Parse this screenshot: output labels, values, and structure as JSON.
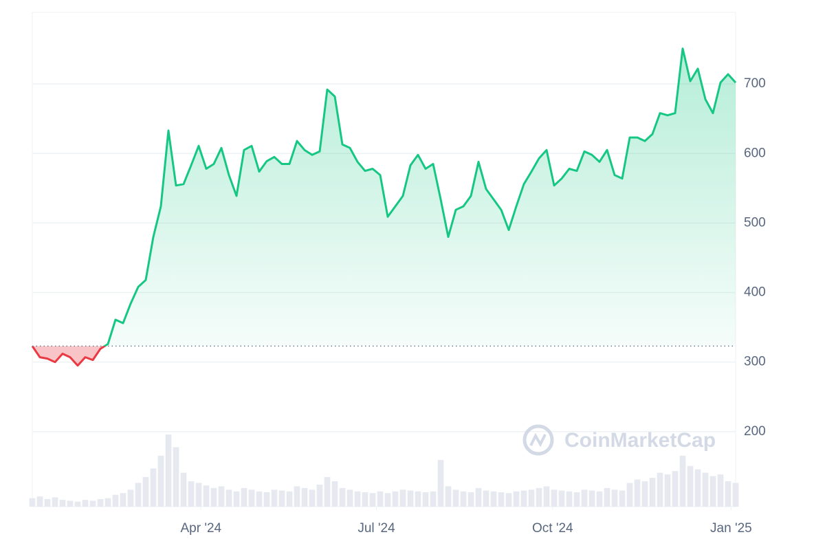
{
  "chart_data": {
    "type": "line",
    "values": [
      323,
      307,
      305,
      300,
      312,
      307,
      295,
      307,
      303,
      319,
      326,
      361,
      356,
      384,
      408,
      418,
      480,
      524,
      633,
      554,
      556,
      583,
      611,
      578,
      585,
      608,
      569,
      539,
      605,
      611,
      574,
      589,
      595,
      585,
      585,
      618,
      605,
      598,
      603,
      692,
      682,
      613,
      608,
      588,
      575,
      578,
      569,
      509,
      524,
      539,
      583,
      598,
      578,
      585,
      534,
      480,
      519,
      524,
      539,
      588,
      549,
      534,
      519,
      490,
      524,
      556,
      574,
      593,
      605,
      554,
      564,
      578,
      575,
      603,
      598,
      588,
      605,
      569,
      564,
      623,
      623,
      618,
      628,
      658,
      655,
      658,
      751,
      704,
      722,
      678,
      658,
      702,
      714,
      702
    ],
    "volume": [
      10,
      12,
      9,
      11,
      8,
      7,
      6,
      8,
      7,
      9,
      10,
      14,
      16,
      20,
      28,
      35,
      45,
      60,
      85,
      70,
      40,
      30,
      28,
      25,
      22,
      24,
      20,
      18,
      22,
      20,
      18,
      17,
      20,
      19,
      18,
      24,
      22,
      20,
      26,
      35,
      30,
      22,
      20,
      18,
      17,
      16,
      18,
      16,
      18,
      20,
      19,
      18,
      17,
      18,
      55,
      24,
      20,
      18,
      17,
      22,
      19,
      18,
      17,
      16,
      18,
      19,
      20,
      22,
      24,
      20,
      19,
      18,
      17,
      20,
      19,
      18,
      22,
      20,
      19,
      28,
      32,
      30,
      34,
      40,
      38,
      42,
      60,
      48,
      44,
      40,
      36,
      38,
      30,
      28
    ],
    "xlim": [
      0,
      93
    ],
    "xticks": [
      {
        "value": 22.3,
        "label": "Apr '24"
      },
      {
        "value": 45.5,
        "label": "Jul '24"
      },
      {
        "value": 68.8,
        "label": "Oct '24"
      },
      {
        "value": 92.4,
        "label": "Jan '25"
      }
    ],
    "ylim": [
      92,
      803
    ],
    "yticks": [
      200,
      300,
      400,
      500,
      600,
      700
    ],
    "grid": true,
    "colors": {
      "up": "#16c784",
      "down": "#ea3943",
      "volume": "#e6e9ef"
    },
    "watermark": "CoinMarketCap"
  }
}
